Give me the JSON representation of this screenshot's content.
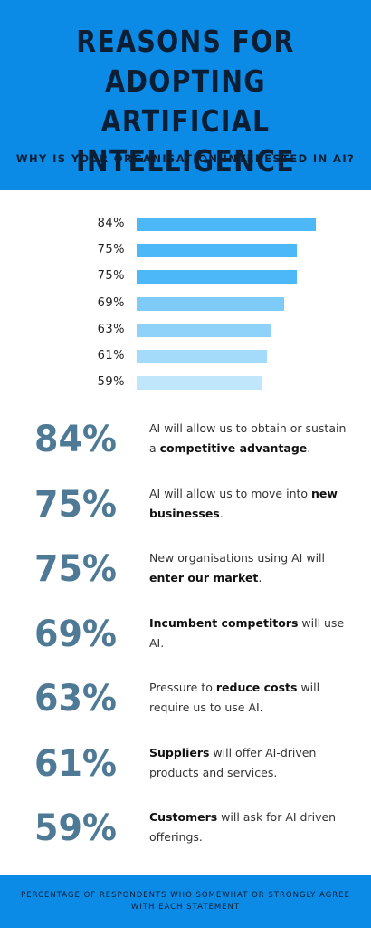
{
  "header": {
    "title_lines": [
      "REASONS FOR",
      "ADOPTING ARTIFICIAL",
      "INTELLIGENCE"
    ],
    "subtitle": "WHY IS YOUR ORGANISATION INTERESTED IN AI?"
  },
  "chart_data": {
    "type": "bar",
    "orientation": "horizontal",
    "values": [
      84,
      75,
      75,
      69,
      63,
      61,
      59
    ],
    "value_labels": [
      "84%",
      "75%",
      "75%",
      "69%",
      "63%",
      "61%",
      "59%"
    ],
    "bar_colors": [
      "#4cb8f7",
      "#4cb8f7",
      "#4cb8f7",
      "#7fcbf8",
      "#8fd2f9",
      "#a4dafa",
      "#c0e6fb"
    ],
    "xlim": [
      0,
      100
    ]
  },
  "statements": [
    {
      "pct": "84%",
      "parts": [
        {
          "t": "AI will allow us to obtain or sustain a ",
          "b": false
        },
        {
          "t": "competitive advantage",
          "b": true
        },
        {
          "t": ".",
          "b": false
        }
      ]
    },
    {
      "pct": "75%",
      "parts": [
        {
          "t": "AI will allow us to move into ",
          "b": false
        },
        {
          "t": "new businesses",
          "b": true
        },
        {
          "t": ".",
          "b": false
        }
      ]
    },
    {
      "pct": "75%",
      "parts": [
        {
          "t": "New organisations using AI will ",
          "b": false
        },
        {
          "t": "enter our market",
          "b": true
        },
        {
          "t": ".",
          "b": false
        }
      ]
    },
    {
      "pct": "69%",
      "parts": [
        {
          "t": "Incumbent competitors",
          "b": true
        },
        {
          "t": " will use AI.",
          "b": false
        }
      ]
    },
    {
      "pct": "63%",
      "parts": [
        {
          "t": "Pressure to ",
          "b": false
        },
        {
          "t": "reduce costs",
          "b": true
        },
        {
          "t": " will require us to use AI.",
          "b": false
        }
      ]
    },
    {
      "pct": "61%",
      "parts": [
        {
          "t": "Suppliers",
          "b": true
        },
        {
          "t": " will offer AI-driven products and services.",
          "b": false
        }
      ]
    },
    {
      "pct": "59%",
      "parts": [
        {
          "t": "Customers",
          "b": true
        },
        {
          "t": " will ask for AI driven offerings.",
          "b": false
        }
      ]
    }
  ],
  "footer": {
    "note": "PERCENTAGE OF RESPONDENTS WHO SOMEWHAT OR STRONGLY AGREE WITH EACH STATEMENT"
  },
  "colors": {
    "header_bg": "#0b8ae6",
    "title_text": "#0b1e33",
    "stat_pct": "#4e7a96"
  }
}
